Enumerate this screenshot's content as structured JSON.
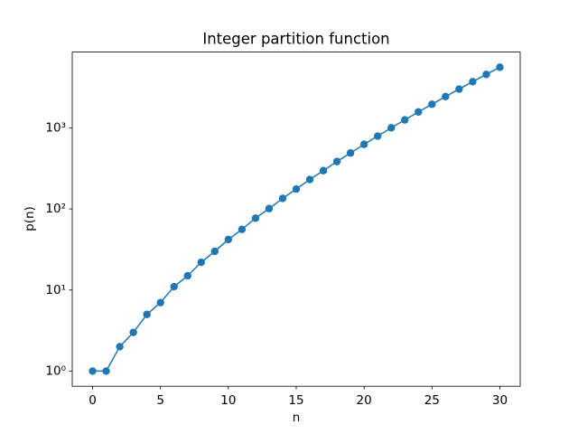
{
  "chart_data": {
    "type": "line",
    "title": "Integer partition function",
    "x_label": "n",
    "y_label": "p(n)",
    "x": [
      0,
      1,
      2,
      3,
      4,
      5,
      6,
      7,
      8,
      9,
      10,
      11,
      12,
      13,
      14,
      15,
      16,
      17,
      18,
      19,
      20,
      21,
      22,
      23,
      24,
      25,
      26,
      27,
      28,
      29,
      30
    ],
    "series": [
      {
        "color": "#1f77b4",
        "values": [
          1,
          1,
          2,
          3,
          5,
          7,
          11,
          15,
          22,
          30,
          42,
          56,
          77,
          101,
          135,
          176,
          231,
          297,
          385,
          490,
          627,
          792,
          1002,
          1255,
          1575,
          1958,
          2436,
          3010,
          3718,
          4565,
          5604
        ]
      }
    ],
    "xlim": [
      -1.5,
      31.5
    ],
    "xticks": [
      0,
      5,
      10,
      15,
      20,
      25,
      30
    ],
    "ylim": [
      0.65,
      8616
    ],
    "yscale": "log",
    "yticks": [
      {
        "value": 1,
        "label": "10⁰"
      },
      {
        "value": 10,
        "label": "10¹"
      },
      {
        "value": 100,
        "label": "10²"
      },
      {
        "value": 1000,
        "label": "10³"
      }
    ],
    "grid": false,
    "markers": true
  }
}
